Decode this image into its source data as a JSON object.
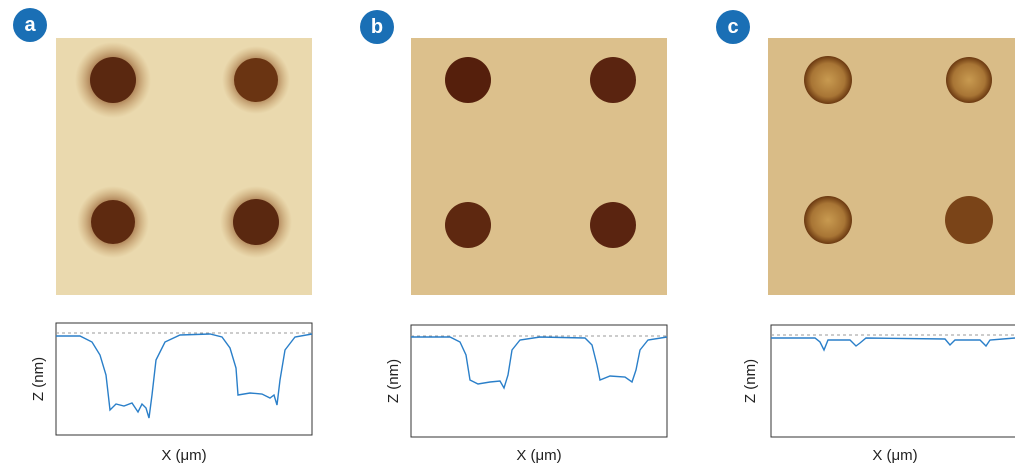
{
  "panels": [
    {
      "label": "a",
      "y_axis_label": "Z (nm)",
      "x_axis_label": "X (μm)"
    },
    {
      "label": "b",
      "y_axis_label": "Z (nm)",
      "x_axis_label": "X (μm)"
    },
    {
      "label": "c",
      "y_axis_label": "Z (nm)",
      "x_axis_label": "X (μm)"
    }
  ]
}
